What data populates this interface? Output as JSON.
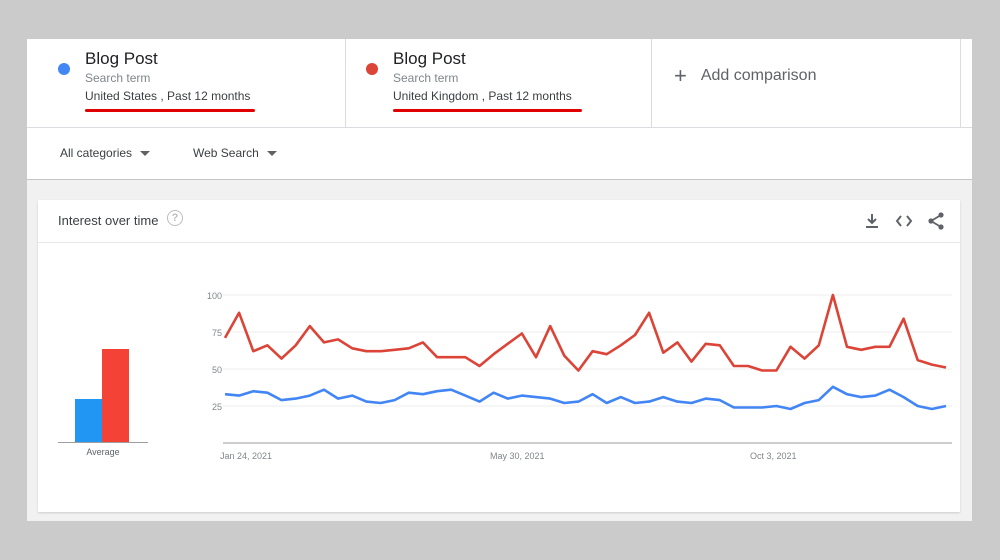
{
  "terms": [
    {
      "title": "Blog Post",
      "subtitle": "Search term",
      "meta": "United States , Past 12 months",
      "color": "#4285f4"
    },
    {
      "title": "Blog Post",
      "subtitle": "Search term",
      "meta": "United Kingdom , Past 12 months",
      "color": "#db4437"
    }
  ],
  "add_comparison": "Add comparison",
  "filters": {
    "category": "All categories",
    "search_type": "Web Search"
  },
  "card": {
    "title": "Interest over time",
    "help": "?",
    "tools": [
      "download-icon",
      "embed-icon",
      "share-icon"
    ]
  },
  "averages": {
    "label": "Average",
    "values": [
      29,
      63
    ]
  },
  "chart_data": {
    "type": "line",
    "ylim": [
      0,
      100
    ],
    "yticks": [
      "100",
      "75",
      "50",
      "25"
    ],
    "xticks": [
      "Jan 24, 2021",
      "May 30, 2021",
      "Oct 3, 2021"
    ],
    "series": [
      {
        "color": "#db4437",
        "values": [
          71,
          88,
          62,
          66,
          57,
          66,
          79,
          68,
          70,
          64,
          62,
          62,
          63,
          64,
          68,
          58,
          58,
          58,
          52,
          60,
          67,
          74,
          58,
          79,
          59,
          49,
          62,
          60,
          66,
          73,
          88,
          61,
          68,
          55,
          67,
          66,
          52,
          52,
          49,
          49,
          65,
          57,
          66,
          100,
          65,
          63,
          65,
          65,
          84,
          56,
          53,
          51
        ]
      },
      {
        "color": "#4285f4",
        "values": [
          33,
          32,
          35,
          34,
          29,
          30,
          32,
          36,
          30,
          32,
          28,
          27,
          29,
          34,
          33,
          35,
          36,
          32,
          28,
          34,
          30,
          32,
          31,
          30,
          27,
          28,
          33,
          27,
          31,
          27,
          28,
          31,
          28,
          27,
          30,
          29,
          24,
          24,
          24,
          25,
          23,
          27,
          29,
          38,
          33,
          31,
          32,
          36,
          31,
          25,
          23,
          25
        ]
      }
    ]
  }
}
